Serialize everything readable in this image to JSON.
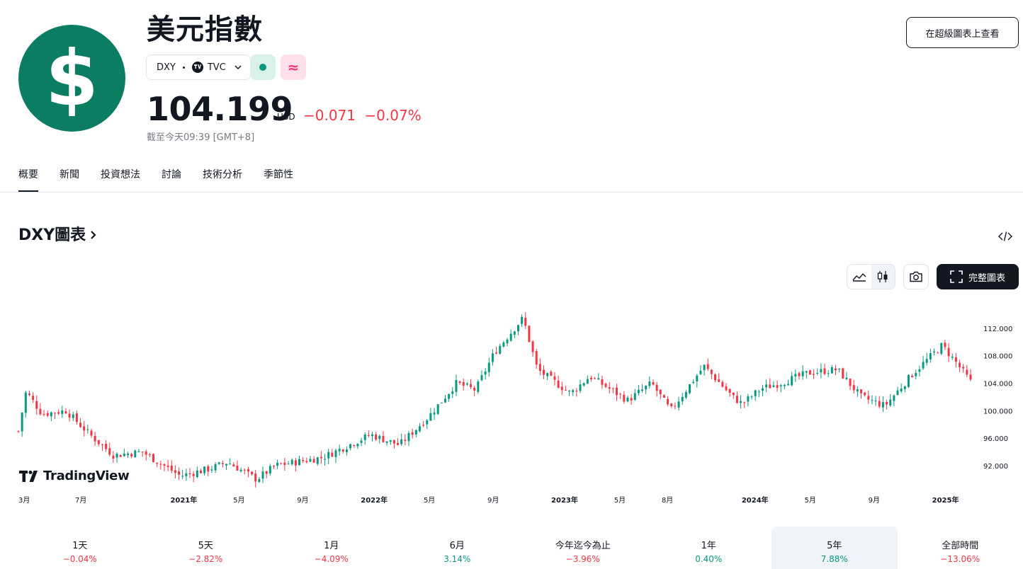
{
  "header": {
    "title": "美元指數",
    "symbol": "DXY",
    "exchange": "TVC",
    "price": "104.199",
    "currency": "USD",
    "change_abs": "−0.071",
    "change_pct": "−0.07%",
    "as_of": "截至今天09:39 [GMT+8]",
    "super_chart_button": "在超級圖表上查看"
  },
  "colors": {
    "brand": "#0a7d62",
    "up": "#089981",
    "down": "#f23645"
  },
  "tabs": [
    {
      "label": "概要",
      "active": true
    },
    {
      "label": "新聞"
    },
    {
      "label": "投資想法"
    },
    {
      "label": "討論"
    },
    {
      "label": "技術分析"
    },
    {
      "label": "季節性"
    }
  ],
  "chart_section": {
    "title": "DXY圖表",
    "fullscreen_label": "完整圖表",
    "brand": "TradingView"
  },
  "periods": [
    {
      "label": "1天",
      "value": "−0.04%",
      "dir": "neg"
    },
    {
      "label": "5天",
      "value": "−2.82%",
      "dir": "neg"
    },
    {
      "label": "1月",
      "value": "−4.09%",
      "dir": "neg"
    },
    {
      "label": "6月",
      "value": "3.14%",
      "dir": "pos"
    },
    {
      "label": "今年迄今為止",
      "value": "−3.96%",
      "dir": "neg"
    },
    {
      "label": "1年",
      "value": "0.40%",
      "dir": "pos"
    },
    {
      "label": "5年",
      "value": "7.88%",
      "dir": "pos",
      "selected": true
    },
    {
      "label": "全部時間",
      "value": "−13.06%",
      "dir": "neg"
    }
  ],
  "chart_data": {
    "type": "candlestick",
    "y_ticks": [
      "112.000",
      "108.000",
      "104.000",
      "100.000",
      "96.000",
      "92.000"
    ],
    "ylim": [
      89,
      116
    ],
    "x_ticks": [
      {
        "label": "3月",
        "t": 0
      },
      {
        "label": "7月",
        "t": 0.067
      },
      {
        "label": "2021年",
        "t": 0.167,
        "bold": true
      },
      {
        "label": "5月",
        "t": 0.233
      },
      {
        "label": "9月",
        "t": 0.3
      },
      {
        "label": "2022年",
        "t": 0.367,
        "bold": true
      },
      {
        "label": "5月",
        "t": 0.433
      },
      {
        "label": "9月",
        "t": 0.5
      },
      {
        "label": "2023年",
        "t": 0.567,
        "bold": true
      },
      {
        "label": "5月",
        "t": 0.633
      },
      {
        "label": "8月",
        "t": 0.683
      },
      {
        "label": "2024年",
        "t": 0.767,
        "bold": true
      },
      {
        "label": "5月",
        "t": 0.833
      },
      {
        "label": "9月",
        "t": 0.9
      },
      {
        "label": "2025年",
        "t": 0.967,
        "bold": true
      }
    ],
    "anchors": [
      {
        "t": 0,
        "v": 97.0
      },
      {
        "t": 0.008,
        "v": 102.8
      },
      {
        "t": 0.025,
        "v": 99.5
      },
      {
        "t": 0.05,
        "v": 100.0
      },
      {
        "t": 0.075,
        "v": 96.5
      },
      {
        "t": 0.1,
        "v": 93.5
      },
      {
        "t": 0.13,
        "v": 94.0
      },
      {
        "t": 0.17,
        "v": 90.5
      },
      {
        "t": 0.2,
        "v": 91.5
      },
      {
        "t": 0.22,
        "v": 92.5
      },
      {
        "t": 0.25,
        "v": 90.0
      },
      {
        "t": 0.27,
        "v": 92.0
      },
      {
        "t": 0.32,
        "v": 93.2
      },
      {
        "t": 0.37,
        "v": 96.5
      },
      {
        "t": 0.4,
        "v": 95.0
      },
      {
        "t": 0.43,
        "v": 99.0
      },
      {
        "t": 0.46,
        "v": 104.0
      },
      {
        "t": 0.48,
        "v": 103.0
      },
      {
        "t": 0.5,
        "v": 108.5
      },
      {
        "t": 0.53,
        "v": 113.5
      },
      {
        "t": 0.545,
        "v": 106.0
      },
      {
        "t": 0.58,
        "v": 102.5
      },
      {
        "t": 0.6,
        "v": 105.0
      },
      {
        "t": 0.64,
        "v": 101.5
      },
      {
        "t": 0.665,
        "v": 104.0
      },
      {
        "t": 0.685,
        "v": 100.0
      },
      {
        "t": 0.72,
        "v": 106.5
      },
      {
        "t": 0.75,
        "v": 102.0
      },
      {
        "t": 0.76,
        "v": 101.0
      },
      {
        "t": 0.78,
        "v": 103.2
      },
      {
        "t": 0.8,
        "v": 104.0
      },
      {
        "t": 0.83,
        "v": 105.5
      },
      {
        "t": 0.86,
        "v": 106.0
      },
      {
        "t": 0.885,
        "v": 102.0
      },
      {
        "t": 0.91,
        "v": 100.7
      },
      {
        "t": 0.94,
        "v": 105.5
      },
      {
        "t": 0.97,
        "v": 109.5
      },
      {
        "t": 0.985,
        "v": 107.0
      },
      {
        "t": 1.0,
        "v": 104.2
      }
    ]
  }
}
